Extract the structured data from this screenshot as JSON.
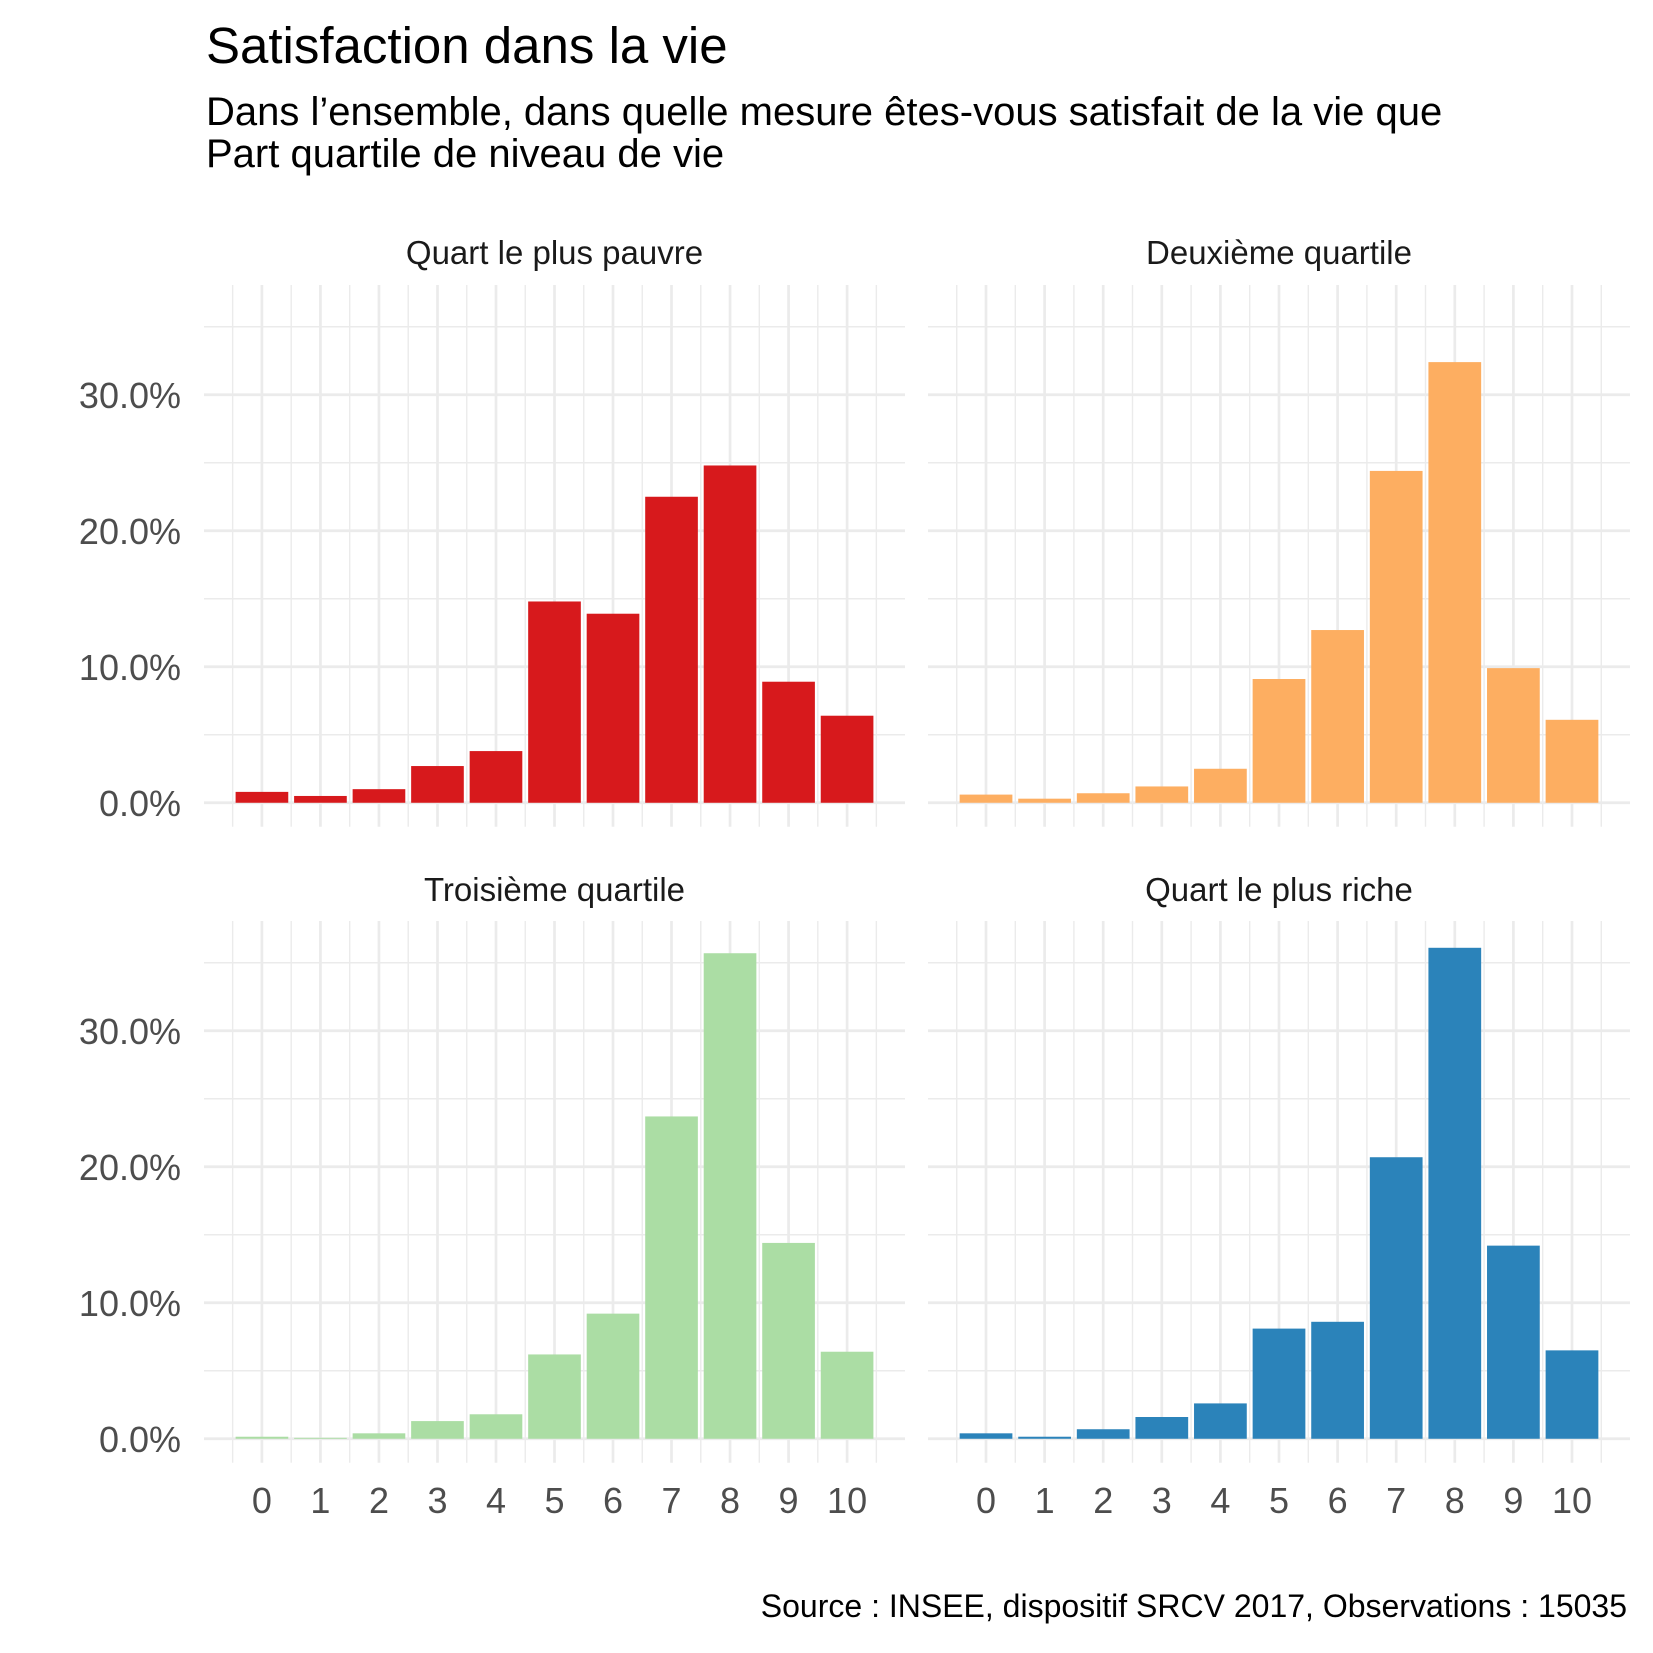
{
  "chart_data": {
    "type": "bar",
    "title": "Satisfaction dans la vie",
    "subtitle_lines": [
      "Dans l’ensemble, dans quelle mesure êtes-vous satisfait de la vie que",
      "Part quartile de niveau de vie"
    ],
    "caption": "Source : INSEE, dispositif SRCV 2017, Observations : 15035",
    "xlabel": "",
    "ylabel": "",
    "categories": [
      "0",
      "1",
      "2",
      "3",
      "4",
      "5",
      "6",
      "7",
      "8",
      "9",
      "10"
    ],
    "y_ticks": [
      0,
      10,
      20,
      30
    ],
    "y_tick_labels": [
      "0.0%",
      "10.0%",
      "20.0%",
      "30.0%"
    ],
    "y_minor": [
      5,
      15,
      25,
      35
    ],
    "ylim": [
      -1.76,
      38.07
    ],
    "grid": true,
    "legend": "none",
    "facets": [
      {
        "name": "Quart le plus pauvre",
        "color": "#d7191c",
        "values": [
          0.8,
          0.5,
          1.0,
          2.7,
          3.8,
          14.8,
          13.9,
          22.5,
          24.8,
          8.9,
          6.4
        ]
      },
      {
        "name": "Deuxième quartile",
        "color": "#fdae61",
        "values": [
          0.6,
          0.3,
          0.7,
          1.2,
          2.5,
          9.1,
          12.7,
          24.4,
          32.4,
          9.9,
          6.1
        ]
      },
      {
        "name": "Troisième quartile",
        "color": "#abdda4",
        "values": [
          0.15,
          0.07,
          0.4,
          1.3,
          1.8,
          6.2,
          9.2,
          23.7,
          35.7,
          14.4,
          6.4
        ]
      },
      {
        "name": "Quart le plus riche",
        "color": "#2b83ba",
        "values": [
          0.4,
          0.15,
          0.7,
          1.6,
          2.6,
          8.1,
          8.6,
          20.7,
          36.1,
          14.2,
          6.5
        ]
      }
    ]
  }
}
